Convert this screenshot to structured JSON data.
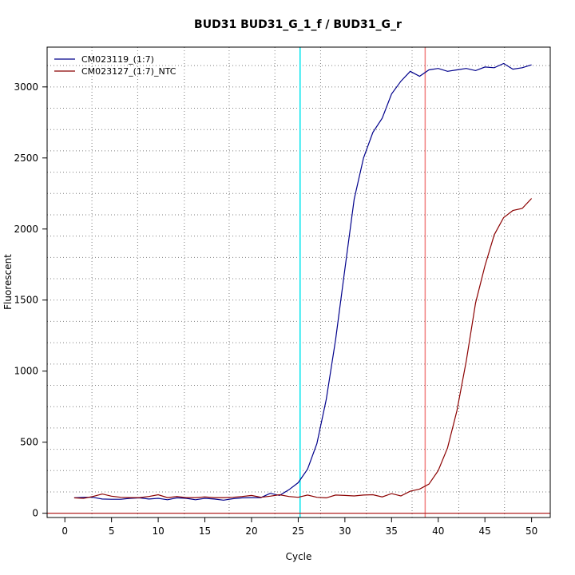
{
  "chart_data": {
    "type": "line",
    "title": "BUD31  BUD31_G_1_f / BUD31_G_r",
    "xlabel": "Cycle",
    "ylabel": "Fluorescent",
    "xlim": [
      -1.9,
      52
    ],
    "ylim": [
      -30,
      3280
    ],
    "x_ticks": [
      0,
      5,
      10,
      15,
      20,
      25,
      30,
      35,
      40,
      45,
      50
    ],
    "y_ticks": [
      0,
      500,
      1000,
      1500,
      2000,
      2500,
      3000
    ],
    "grid": true,
    "grid_x": [
      2.9,
      7.8,
      12.8,
      17.6,
      22.5,
      27.4,
      32.3,
      37.2,
      42.2,
      47.1
    ],
    "grid_y": [
      150,
      300,
      450,
      600,
      750,
      900,
      1050,
      1200,
      1350,
      1500,
      1650,
      1800,
      1950,
      2100,
      2250,
      2400,
      2550,
      2700,
      2850,
      3000,
      3150
    ],
    "legend_position": "top-left",
    "threshold_line": {
      "y": 0,
      "color": "#b22222"
    },
    "cycle_markers": [
      {
        "x": 25.2,
        "color": "#00e5ee"
      },
      {
        "x": 38.6,
        "color": "#f08080"
      }
    ],
    "series": [
      {
        "name": "CM023119_(1:7)",
        "color": "#00008b",
        "x": [
          1,
          2,
          3,
          4,
          5,
          6,
          7,
          8,
          9,
          10,
          11,
          12,
          13,
          14,
          15,
          16,
          17,
          18,
          19,
          20,
          21,
          22,
          23,
          24,
          25,
          26,
          27,
          28,
          29,
          30,
          31,
          32,
          33,
          34,
          35,
          36,
          37,
          38,
          39,
          40,
          41,
          42,
          43,
          44,
          45,
          46,
          47,
          48,
          49,
          50
        ],
        "values": [
          108,
          112,
          112,
          100,
          98,
          98,
          105,
          108,
          100,
          105,
          95,
          108,
          105,
          95,
          105,
          100,
          92,
          102,
          108,
          110,
          110,
          140,
          125,
          165,
          215,
          310,
          490,
          800,
          1220,
          1720,
          2210,
          2500,
          2680,
          2780,
          2950,
          3040,
          3110,
          3075,
          3120,
          3130,
          3110,
          3120,
          3130,
          3115,
          3140,
          3135,
          3165,
          3125,
          3135,
          3155
        ]
      },
      {
        "name": "CM023127_(1:7)_NTC",
        "color": "#8b0000",
        "x": [
          1,
          2,
          3,
          4,
          5,
          6,
          7,
          8,
          9,
          10,
          11,
          12,
          13,
          14,
          15,
          16,
          17,
          18,
          19,
          20,
          21,
          22,
          23,
          24,
          25,
          26,
          27,
          28,
          29,
          30,
          31,
          32,
          33,
          34,
          35,
          36,
          37,
          38,
          39,
          40,
          41,
          42,
          43,
          44,
          45,
          46,
          47,
          48,
          49,
          50
        ],
        "values": [
          108,
          105,
          118,
          135,
          120,
          112,
          110,
          110,
          118,
          130,
          110,
          118,
          110,
          110,
          115,
          110,
          110,
          112,
          118,
          125,
          112,
          120,
          130,
          118,
          112,
          128,
          112,
          108,
          128,
          125,
          122,
          128,
          130,
          115,
          138,
          122,
          155,
          170,
          205,
          300,
          460,
          720,
          1070,
          1480,
          1740,
          1960,
          2080,
          2130,
          2145,
          2215
        ]
      }
    ]
  }
}
